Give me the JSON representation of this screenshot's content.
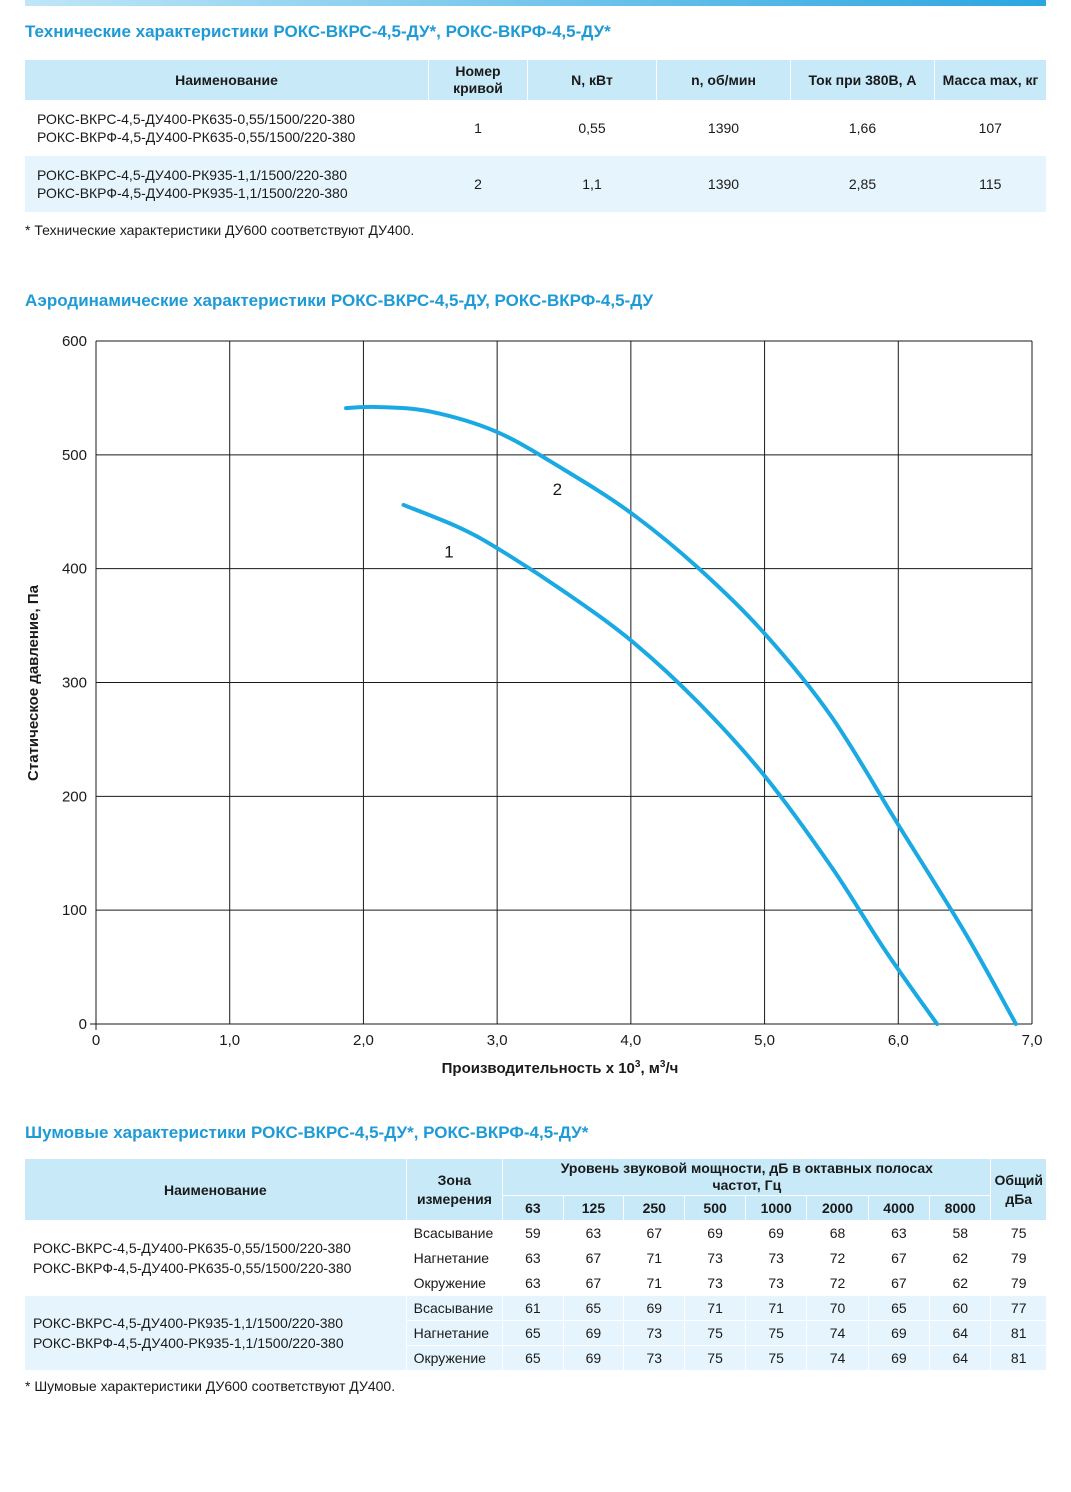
{
  "tech": {
    "title": "Технические характеристики РОКС-ВКРС-4,5-ДУ*, РОКС-ВКРФ-4,5-ДУ*",
    "headers": {
      "name": "Наименование",
      "curve_line1": "Номер",
      "curve_line2": "кривой",
      "power": "N, кВт",
      "rpm": "n, об/мин",
      "current": "Ток при 380В, А",
      "mass": "Масса max, кг"
    },
    "rows": [
      {
        "name1": "РОКС-ВКРС-4,5-ДУ400-РК635-0,55/1500/220-380",
        "name2": "РОКС-ВКРФ-4,5-ДУ400-РК635-0,55/1500/220-380",
        "curve": "1",
        "power": "0,55",
        "rpm": "1390",
        "current": "1,66",
        "mass": "107"
      },
      {
        "name1": "РОКС-ВКРС-4,5-ДУ400-РК935-1,1/1500/220-380",
        "name2": "РОКС-ВКРФ-4,5-ДУ400-РК935-1,1/1500/220-380",
        "curve": "2",
        "power": "1,1",
        "rpm": "1390",
        "current": "2,85",
        "mass": "115"
      }
    ],
    "note": "* Технические характеристики ДУ600 соответствуют ДУ400."
  },
  "aero": {
    "title": "Аэродинамические характеристики РОКС-ВКРС-4,5-ДУ, РОКС-ВКРФ-4,5-ДУ"
  },
  "chart_data": {
    "type": "line",
    "xlabel": "Производительность х 10³, м³/ч",
    "ylabel": "Статическое давление, Па",
    "xlim": [
      0,
      7
    ],
    "ylim": [
      0,
      600
    ],
    "x_ticks": [
      "0",
      "1,0",
      "2,0",
      "3,0",
      "4,0",
      "5,0",
      "6,0",
      "7,0"
    ],
    "y_ticks": [
      "0",
      "100",
      "200",
      "300",
      "400",
      "500",
      "600"
    ],
    "grid": true,
    "line_color": "#1aa9e2",
    "series": [
      {
        "name": "1",
        "x": [
          2.3,
          2.7,
          3.0,
          3.5,
          4.0,
          4.5,
          5.0,
          5.5,
          5.9,
          6.29
        ],
        "y": [
          456,
          437,
          418,
          380,
          337,
          283,
          218,
          138,
          65,
          0
        ]
      },
      {
        "name": "2",
        "x": [
          1.87,
          2.1,
          2.5,
          3.0,
          3.5,
          4.0,
          4.5,
          5.0,
          5.5,
          6.0,
          6.5,
          6.88
        ],
        "y": [
          541,
          542,
          538,
          520,
          487,
          449,
          401,
          343,
          270,
          175,
          80,
          0
        ]
      }
    ]
  },
  "noise": {
    "title": "Шумовые характеристики РОКС-ВКРС-4,5-ДУ*, РОКС-ВКРФ-4,5-ДУ*",
    "headers": {
      "name": "Наименование",
      "zone_line1": "Зона",
      "zone_line2": "измерения",
      "level_line1": "Уровень звуковой мощности, дБ в октавных полосах",
      "level_line2": "частот, Гц",
      "total_line1": "Общий",
      "total_line2": "дБа",
      "freqs": [
        "63",
        "125",
        "250",
        "500",
        "1000",
        "2000",
        "4000",
        "8000"
      ]
    },
    "groups": [
      {
        "name1": "РОКС-ВКРС-4,5-ДУ400-РК635-0,55/1500/220-380",
        "name2": "РОКС-ВКРФ-4,5-ДУ400-РК635-0,55/1500/220-380",
        "rows": [
          {
            "zone": "Всасывание",
            "values": [
              "59",
              "63",
              "67",
              "69",
              "69",
              "68",
              "63",
              "58"
            ],
            "total": "75"
          },
          {
            "zone": "Нагнетание",
            "values": [
              "63",
              "67",
              "71",
              "73",
              "73",
              "72",
              "67",
              "62"
            ],
            "total": "79"
          },
          {
            "zone": "Окружение",
            "values": [
              "63",
              "67",
              "71",
              "73",
              "73",
              "72",
              "67",
              "62"
            ],
            "total": "79"
          }
        ]
      },
      {
        "name1": "РОКС-ВКРС-4,5-ДУ400-РК935-1,1/1500/220-380",
        "name2": "РОКС-ВКРФ-4,5-ДУ400-РК935-1,1/1500/220-380",
        "rows": [
          {
            "zone": "Всасывание",
            "values": [
              "61",
              "65",
              "69",
              "71",
              "71",
              "70",
              "65",
              "60"
            ],
            "total": "77"
          },
          {
            "zone": "Нагнетание",
            "values": [
              "65",
              "69",
              "73",
              "75",
              "75",
              "74",
              "69",
              "64"
            ],
            "total": "81"
          },
          {
            "zone": "Окружение",
            "values": [
              "65",
              "69",
              "73",
              "75",
              "75",
              "74",
              "69",
              "64"
            ],
            "total": "81"
          }
        ]
      }
    ],
    "note": "* Шумовые характеристики ДУ600 соответствуют ДУ400."
  }
}
